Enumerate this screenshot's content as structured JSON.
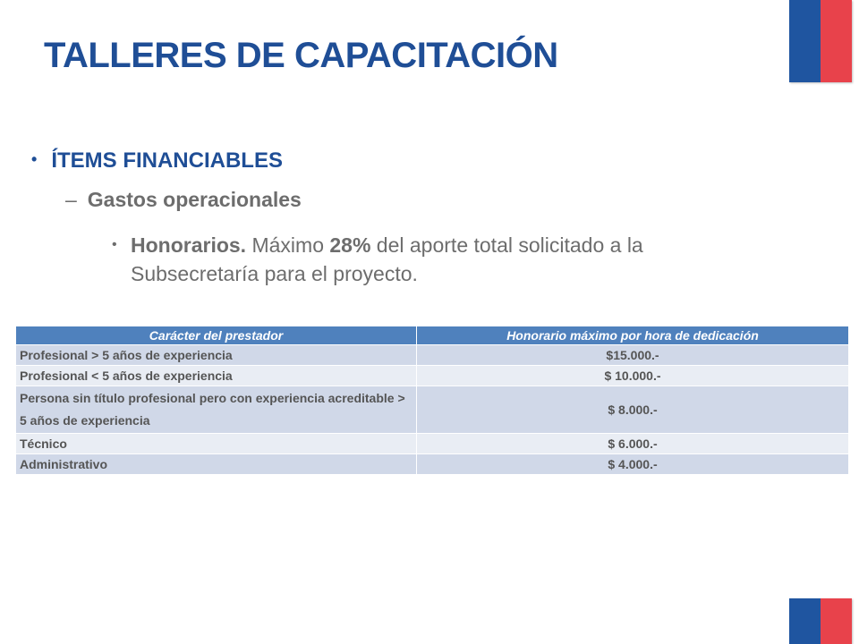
{
  "slide": {
    "title": "TALLERES DE CAPACITACIÓN",
    "colors": {
      "title": "#1f4e96",
      "body": "#6d6d6d",
      "table_header": "#4f81bd",
      "flag_blue": "#1f55a0",
      "flag_red": "#e8424b"
    }
  },
  "bullets": {
    "level1": "ÍTEMS FINANCIABLES",
    "level2": "Gastos operacionales",
    "level3_bold": "Honorarios.",
    "level3_text_a": " Máximo ",
    "level3_pct": "28%",
    "level3_text_b": " del aporte total solicitado a la Subsecretaría para el proyecto."
  },
  "table": {
    "headers": [
      "Carácter del prestador",
      "Honorario máximo por hora de dedicación"
    ],
    "rows": [
      [
        "Profesional > 5 años de experiencia",
        "$15.000.-"
      ],
      [
        "Profesional < 5 años de experiencia",
        "$ 10.000.-"
      ],
      [
        "Persona sin título profesional pero con experiencia acreditable  > 5 años de experiencia",
        "$ 8.000.-"
      ],
      [
        "Técnico",
        "$ 6.000.-"
      ],
      [
        "Administrativo",
        "$ 4.000.-"
      ]
    ]
  }
}
